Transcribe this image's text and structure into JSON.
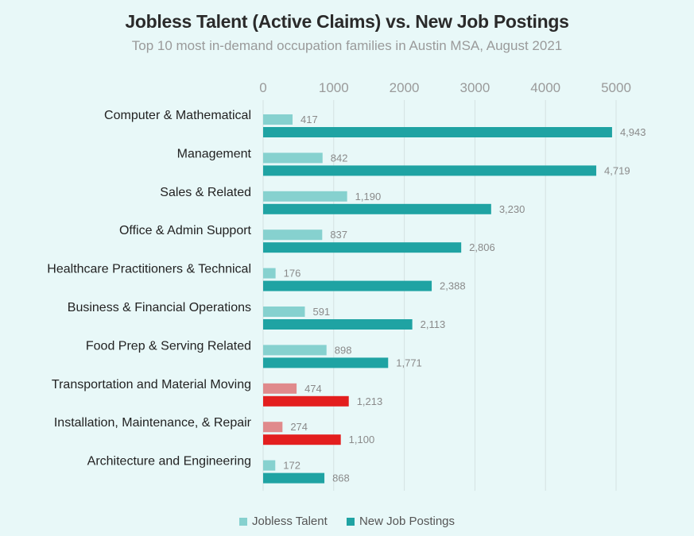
{
  "chart_data": {
    "type": "bar",
    "orientation": "horizontal",
    "title": "Jobless Talent (Active Claims) vs. New Job Postings",
    "subtitle": "Top 10 most in-demand occupation families in Austin MSA, August 2021",
    "categories": [
      "Computer & Mathematical",
      "Management",
      "Sales & Related",
      "Office & Admin Support",
      "Healthcare Practitioners & Technical",
      "Business & Financial Operations",
      "Food Prep & Serving Related",
      "Transportation and Material Moving",
      "Installation, Maintenance, & Repair",
      "Architecture and Engineering"
    ],
    "series": [
      {
        "name": "Jobless Talent",
        "values": [
          417,
          842,
          1190,
          837,
          176,
          591,
          898,
          474,
          274,
          172
        ],
        "labels": [
          "417",
          "842",
          "1,190",
          "837",
          "176",
          "591",
          "898",
          "474",
          "274",
          "172"
        ],
        "color": "#86d1cf",
        "highlight_color": "#e08a8c"
      },
      {
        "name": "New Job Postings",
        "values": [
          4943,
          4719,
          3230,
          2806,
          2388,
          2113,
          1771,
          1213,
          1100,
          868
        ],
        "labels": [
          "4,943",
          "4,719",
          "3,230",
          "2,806",
          "2,388",
          "2,113",
          "1,771",
          "1,213",
          "1,100",
          "868"
        ],
        "color": "#1fa3a3",
        "highlight_color": "#e31e1e"
      }
    ],
    "highlighted_categories": [
      "Transportation and Material Moving",
      "Installation, Maintenance, & Repair"
    ],
    "xlim": [
      0,
      5000
    ],
    "xticks": [
      0,
      1000,
      2000,
      3000,
      4000,
      5000
    ],
    "xtick_labels": [
      "0",
      "1000",
      "2000",
      "3000",
      "4000",
      "5000"
    ],
    "grid": true,
    "xaxis_position": "top",
    "legend_position": "bottom"
  },
  "colors": {
    "background": "#e8f8f8",
    "gridline": "#d4e2e2",
    "tick_label": "#9a9a9a",
    "category_label": "#222222",
    "data_label": "#8a8a8a"
  }
}
